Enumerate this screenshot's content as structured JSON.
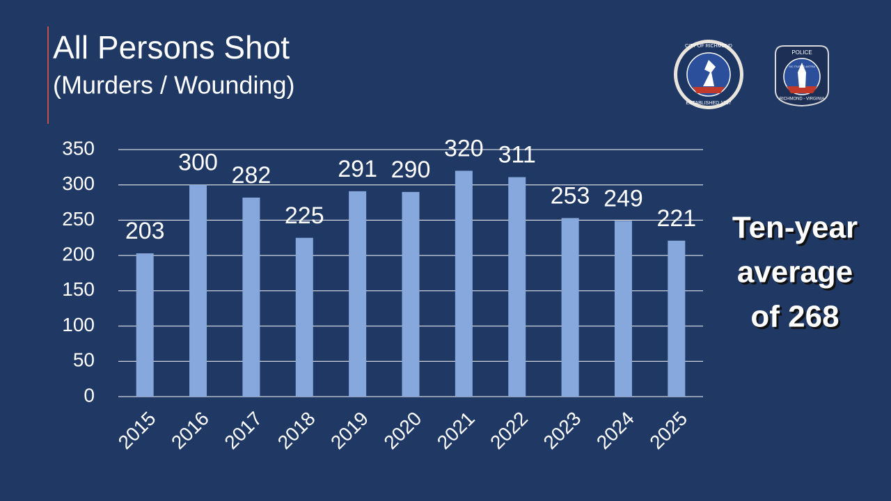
{
  "chart_data": {
    "type": "bar",
    "title": "All Persons Shot",
    "subtitle": "(Murders / Wounding)",
    "categories": [
      "2015",
      "2016",
      "2017",
      "2018",
      "2019",
      "2020",
      "2021",
      "2022",
      "2023",
      "2024",
      "2025"
    ],
    "values": [
      203,
      300,
      282,
      225,
      291,
      290,
      320,
      311,
      253,
      249,
      221
    ],
    "color": "#86a8dc",
    "ylim": [
      0,
      350
    ],
    "yticks": [
      0,
      50,
      100,
      150,
      200,
      250,
      300,
      350
    ],
    "grid": true,
    "annotation": [
      "Ten-year",
      "average",
      "of 268"
    ]
  },
  "logos": {
    "city": {
      "top": "CITY OF RICHMOND",
      "bottom": "ESTABLISHED 1737"
    },
    "police": {
      "top": "POLICE",
      "motto": "SIC ITUR AD ASTRA",
      "bottom": "RICHMOND - VIRGINIA"
    }
  }
}
